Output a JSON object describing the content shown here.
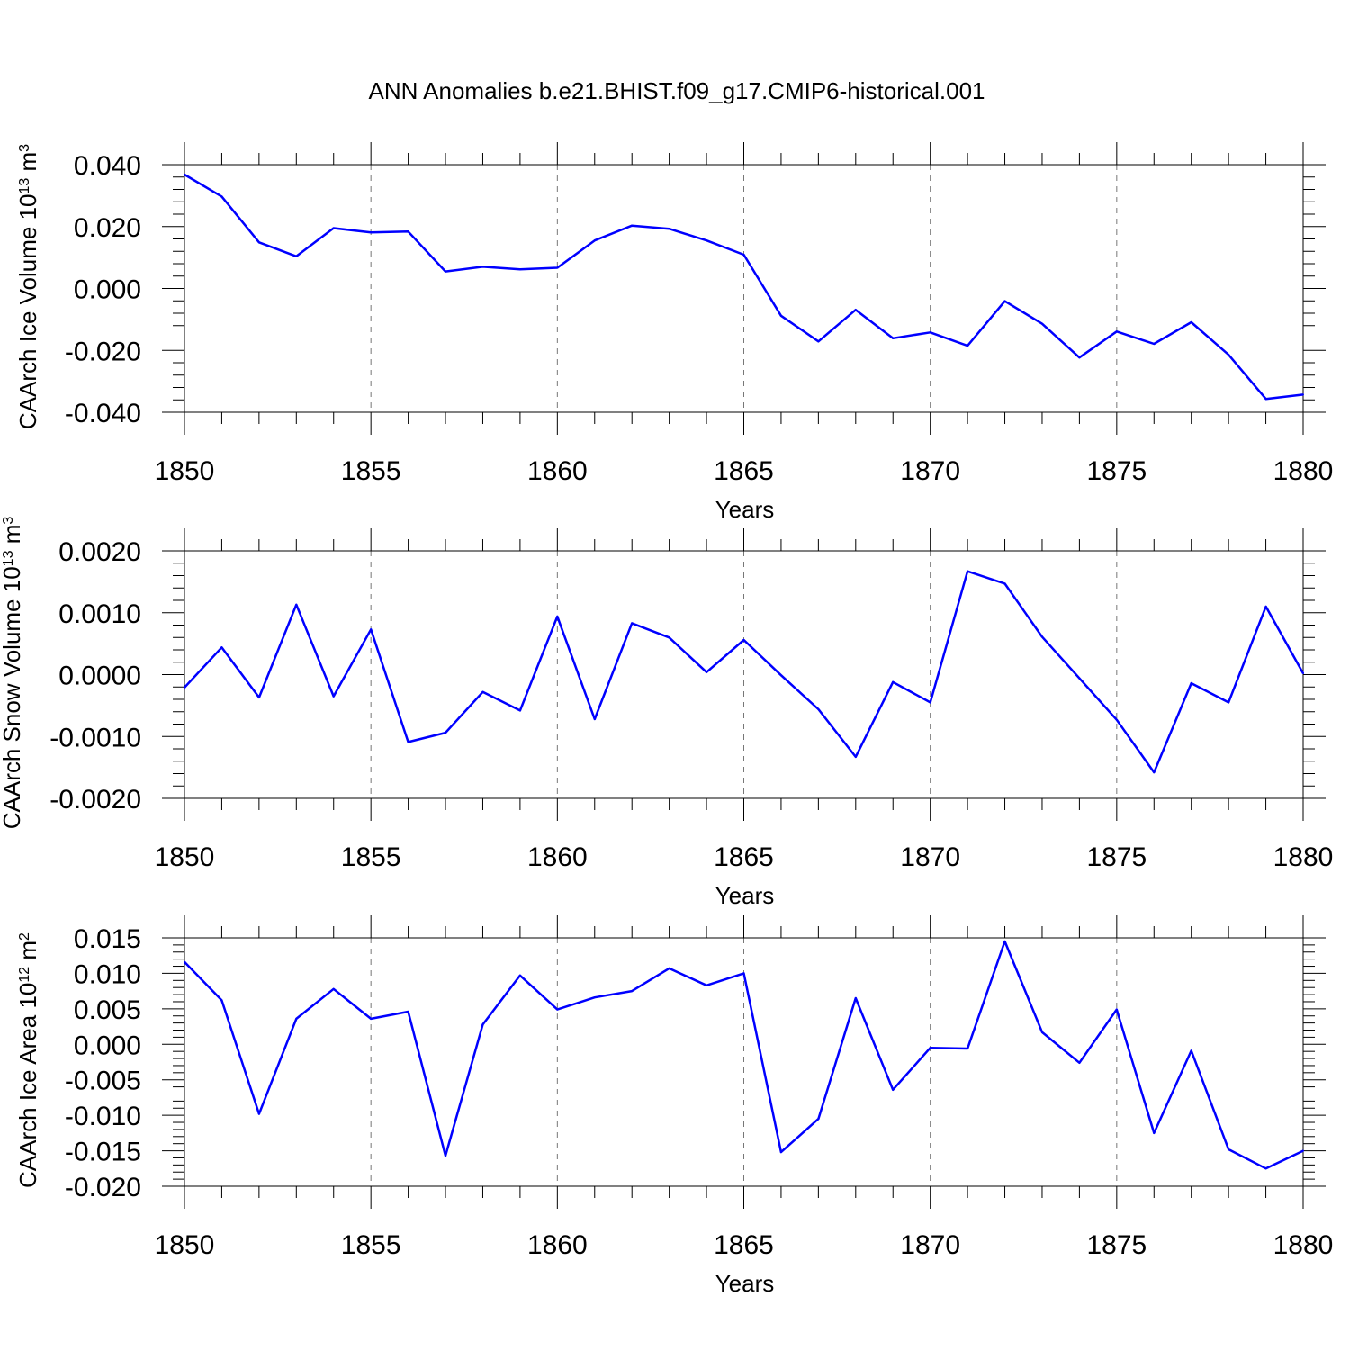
{
  "title": "ANN Anomalies b.e21.BHIST.f09_g17.CMIP6-historical.001",
  "colors": {
    "line": "#0000ff",
    "axis": "#000000",
    "grid": "#777777",
    "background": "#ffffff"
  },
  "chart_data": [
    {
      "type": "line",
      "ylabel": {
        "text": "CAArch Ice Volume 10",
        "exp": "13",
        "unit": " m",
        "unit_exp": "3"
      },
      "xlabel": "Years",
      "xlim": [
        1850,
        1880
      ],
      "ylim": [
        -0.04,
        0.04
      ],
      "x_ticks": [
        "1850",
        "1855",
        "1860",
        "1865",
        "1870",
        "1875",
        "1880"
      ],
      "y_ticks": [
        "0.040",
        "0.020",
        "0.000",
        "-0.020",
        "-0.040"
      ],
      "y_tick_values": [
        0.04,
        0.02,
        0.0,
        -0.02,
        -0.04
      ],
      "grid": "vertical dashed at major x ticks",
      "x": [
        1850,
        1851,
        1852,
        1853,
        1854,
        1855,
        1856,
        1857,
        1858,
        1859,
        1860,
        1861,
        1862,
        1863,
        1864,
        1865,
        1866,
        1867,
        1868,
        1869,
        1870,
        1871,
        1872,
        1873,
        1874,
        1875,
        1876,
        1877,
        1878,
        1879,
        1880
      ],
      "series": [
        {
          "values": [
            0.0368,
            0.0297,
            0.0149,
            0.0104,
            0.0195,
            0.0181,
            0.0184,
            0.0055,
            0.007,
            0.0062,
            0.0067,
            0.0155,
            0.0203,
            0.0193,
            0.0155,
            0.0109,
            -0.0088,
            -0.0171,
            -0.0069,
            -0.0161,
            -0.0142,
            -0.0185,
            -0.0041,
            -0.0114,
            -0.0223,
            -0.0139,
            -0.0179,
            -0.0109,
            -0.0214,
            -0.0357,
            -0.0343
          ]
        }
      ]
    },
    {
      "type": "line",
      "ylabel": {
        "text": "CAArch Snow Volume 10",
        "exp": "13",
        "unit": " m",
        "unit_exp": "3"
      },
      "xlabel": "Years",
      "xlim": [
        1850,
        1880
      ],
      "ylim": [
        -0.002,
        0.002
      ],
      "x_ticks": [
        "1850",
        "1855",
        "1860",
        "1865",
        "1870",
        "1875",
        "1880"
      ],
      "y_ticks": [
        "0.0020",
        "0.0010",
        "0.0000",
        "-0.0010",
        "-0.0020"
      ],
      "y_tick_values": [
        0.002,
        0.001,
        0.0,
        -0.001,
        -0.002
      ],
      "grid": "vertical dashed at major x ticks",
      "x": [
        1850,
        1851,
        1852,
        1853,
        1854,
        1855,
        1856,
        1857,
        1858,
        1859,
        1860,
        1861,
        1862,
        1863,
        1864,
        1865,
        1866,
        1867,
        1868,
        1869,
        1870,
        1871,
        1872,
        1873,
        1874,
        1875,
        1876,
        1877,
        1878,
        1879,
        1880
      ],
      "series": [
        {
          "values": [
            -0.00021,
            0.00044,
            -0.00037,
            0.00113,
            -0.00035,
            0.00073,
            -0.00109,
            -0.00094,
            -0.00028,
            -0.00058,
            0.00094,
            -0.00072,
            0.00083,
            0.0006,
            4e-05,
            0.00056,
            -1e-05,
            -0.00056,
            -0.00133,
            -0.00012,
            -0.00045,
            0.00167,
            0.00147,
            0.00061,
            -6e-05,
            -0.00073,
            -0.00158,
            -0.00014,
            -0.00045,
            0.0011,
            2e-05
          ]
        }
      ]
    },
    {
      "type": "line",
      "ylabel": {
        "text": "CAArch Ice Area 10",
        "exp": "12",
        "unit": " m",
        "unit_exp": "2"
      },
      "xlabel": "Years",
      "xlim": [
        1850,
        1880
      ],
      "ylim": [
        -0.02,
        0.015
      ],
      "x_ticks": [
        "1850",
        "1855",
        "1860",
        "1865",
        "1870",
        "1875",
        "1880"
      ],
      "y_ticks": [
        "0.015",
        "0.010",
        "0.005",
        "0.000",
        "-0.005",
        "-0.010",
        "-0.015",
        "-0.020"
      ],
      "y_tick_values": [
        0.015,
        0.01,
        0.005,
        0.0,
        -0.005,
        -0.01,
        -0.015,
        -0.02
      ],
      "grid": "vertical dashed at major x ticks",
      "x": [
        1850,
        1851,
        1852,
        1853,
        1854,
        1855,
        1856,
        1857,
        1858,
        1859,
        1860,
        1861,
        1862,
        1863,
        1864,
        1865,
        1866,
        1867,
        1868,
        1869,
        1870,
        1871,
        1872,
        1873,
        1874,
        1875,
        1876,
        1877,
        1878,
        1879,
        1880
      ],
      "series": [
        {
          "values": [
            0.0116,
            0.0062,
            -0.0098,
            0.0036,
            0.0078,
            0.0036,
            0.0046,
            -0.0157,
            0.0028,
            0.0097,
            0.0049,
            0.0066,
            0.0075,
            0.0107,
            0.0083,
            0.01,
            -0.0152,
            -0.0105,
            0.0065,
            -0.0064,
            -0.0005,
            -0.0006,
            0.0145,
            0.0017,
            -0.0026,
            0.0049,
            -0.0125,
            -0.0009,
            -0.0148,
            -0.0175,
            -0.015
          ]
        }
      ]
    }
  ]
}
